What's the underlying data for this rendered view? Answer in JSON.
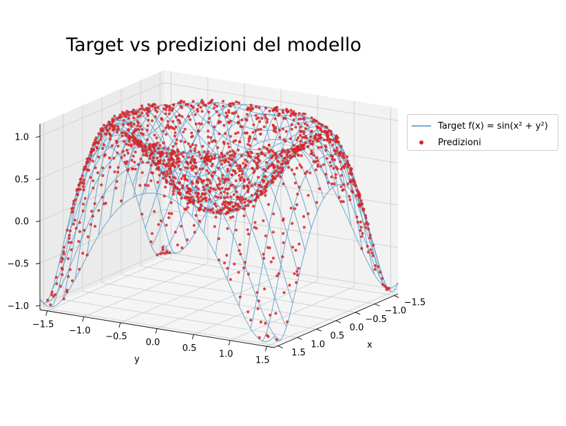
{
  "title": "Target vs predizioni del modello",
  "legend": {
    "target_label": "Target f(x) = sin(x² + y²)",
    "pred_label": "Predizioni",
    "target_color": "#5b9bc8",
    "pred_color": "#d62728"
  },
  "chart_data": {
    "type": "scatter",
    "subtype": "3d-surface-wireframe-with-scatter",
    "function": "sin(x^2 + y^2)",
    "xlabel": "x",
    "ylabel": "y",
    "zlabel": "",
    "xlim": [
      -1.6,
      1.6
    ],
    "ylim": [
      -1.6,
      1.6
    ],
    "zlim": [
      -1.05,
      1.15
    ],
    "x_ticks": [
      -1.5,
      -1.0,
      -0.5,
      0.0,
      0.5,
      1.0,
      1.5
    ],
    "x_tick_labels": [
      "−1.5",
      "−1.0",
      "−0.5",
      "0.0",
      "0.5",
      "1.0",
      "1.5"
    ],
    "y_ticks": [
      -1.5,
      -1.0,
      -0.5,
      0.0,
      0.5,
      1.0,
      1.5
    ],
    "y_tick_labels": [
      "−1.5",
      "−1.0",
      "−0.5",
      "0.0",
      "0.5",
      "1.0",
      "1.5"
    ],
    "z_ticks": [
      -1.0,
      -0.5,
      0.0,
      0.5,
      1.0
    ],
    "z_tick_labels": [
      "−1.0",
      "−0.5",
      "0.0",
      "0.5",
      "1.0"
    ],
    "grid": true,
    "legend_position": "right",
    "series": [
      {
        "name": "Target f(x) = sin(x² + y²)",
        "kind": "wireframe",
        "color": "#5b9bc8",
        "x_range": [
          -1.6,
          1.6
        ],
        "y_range": [
          -1.6,
          1.6
        ]
      },
      {
        "name": "Predizioni",
        "kind": "scatter",
        "color": "#d62728",
        "x_range": [
          -1.6,
          1.6
        ],
        "y_range": [
          -1.6,
          1.6
        ]
      }
    ]
  }
}
